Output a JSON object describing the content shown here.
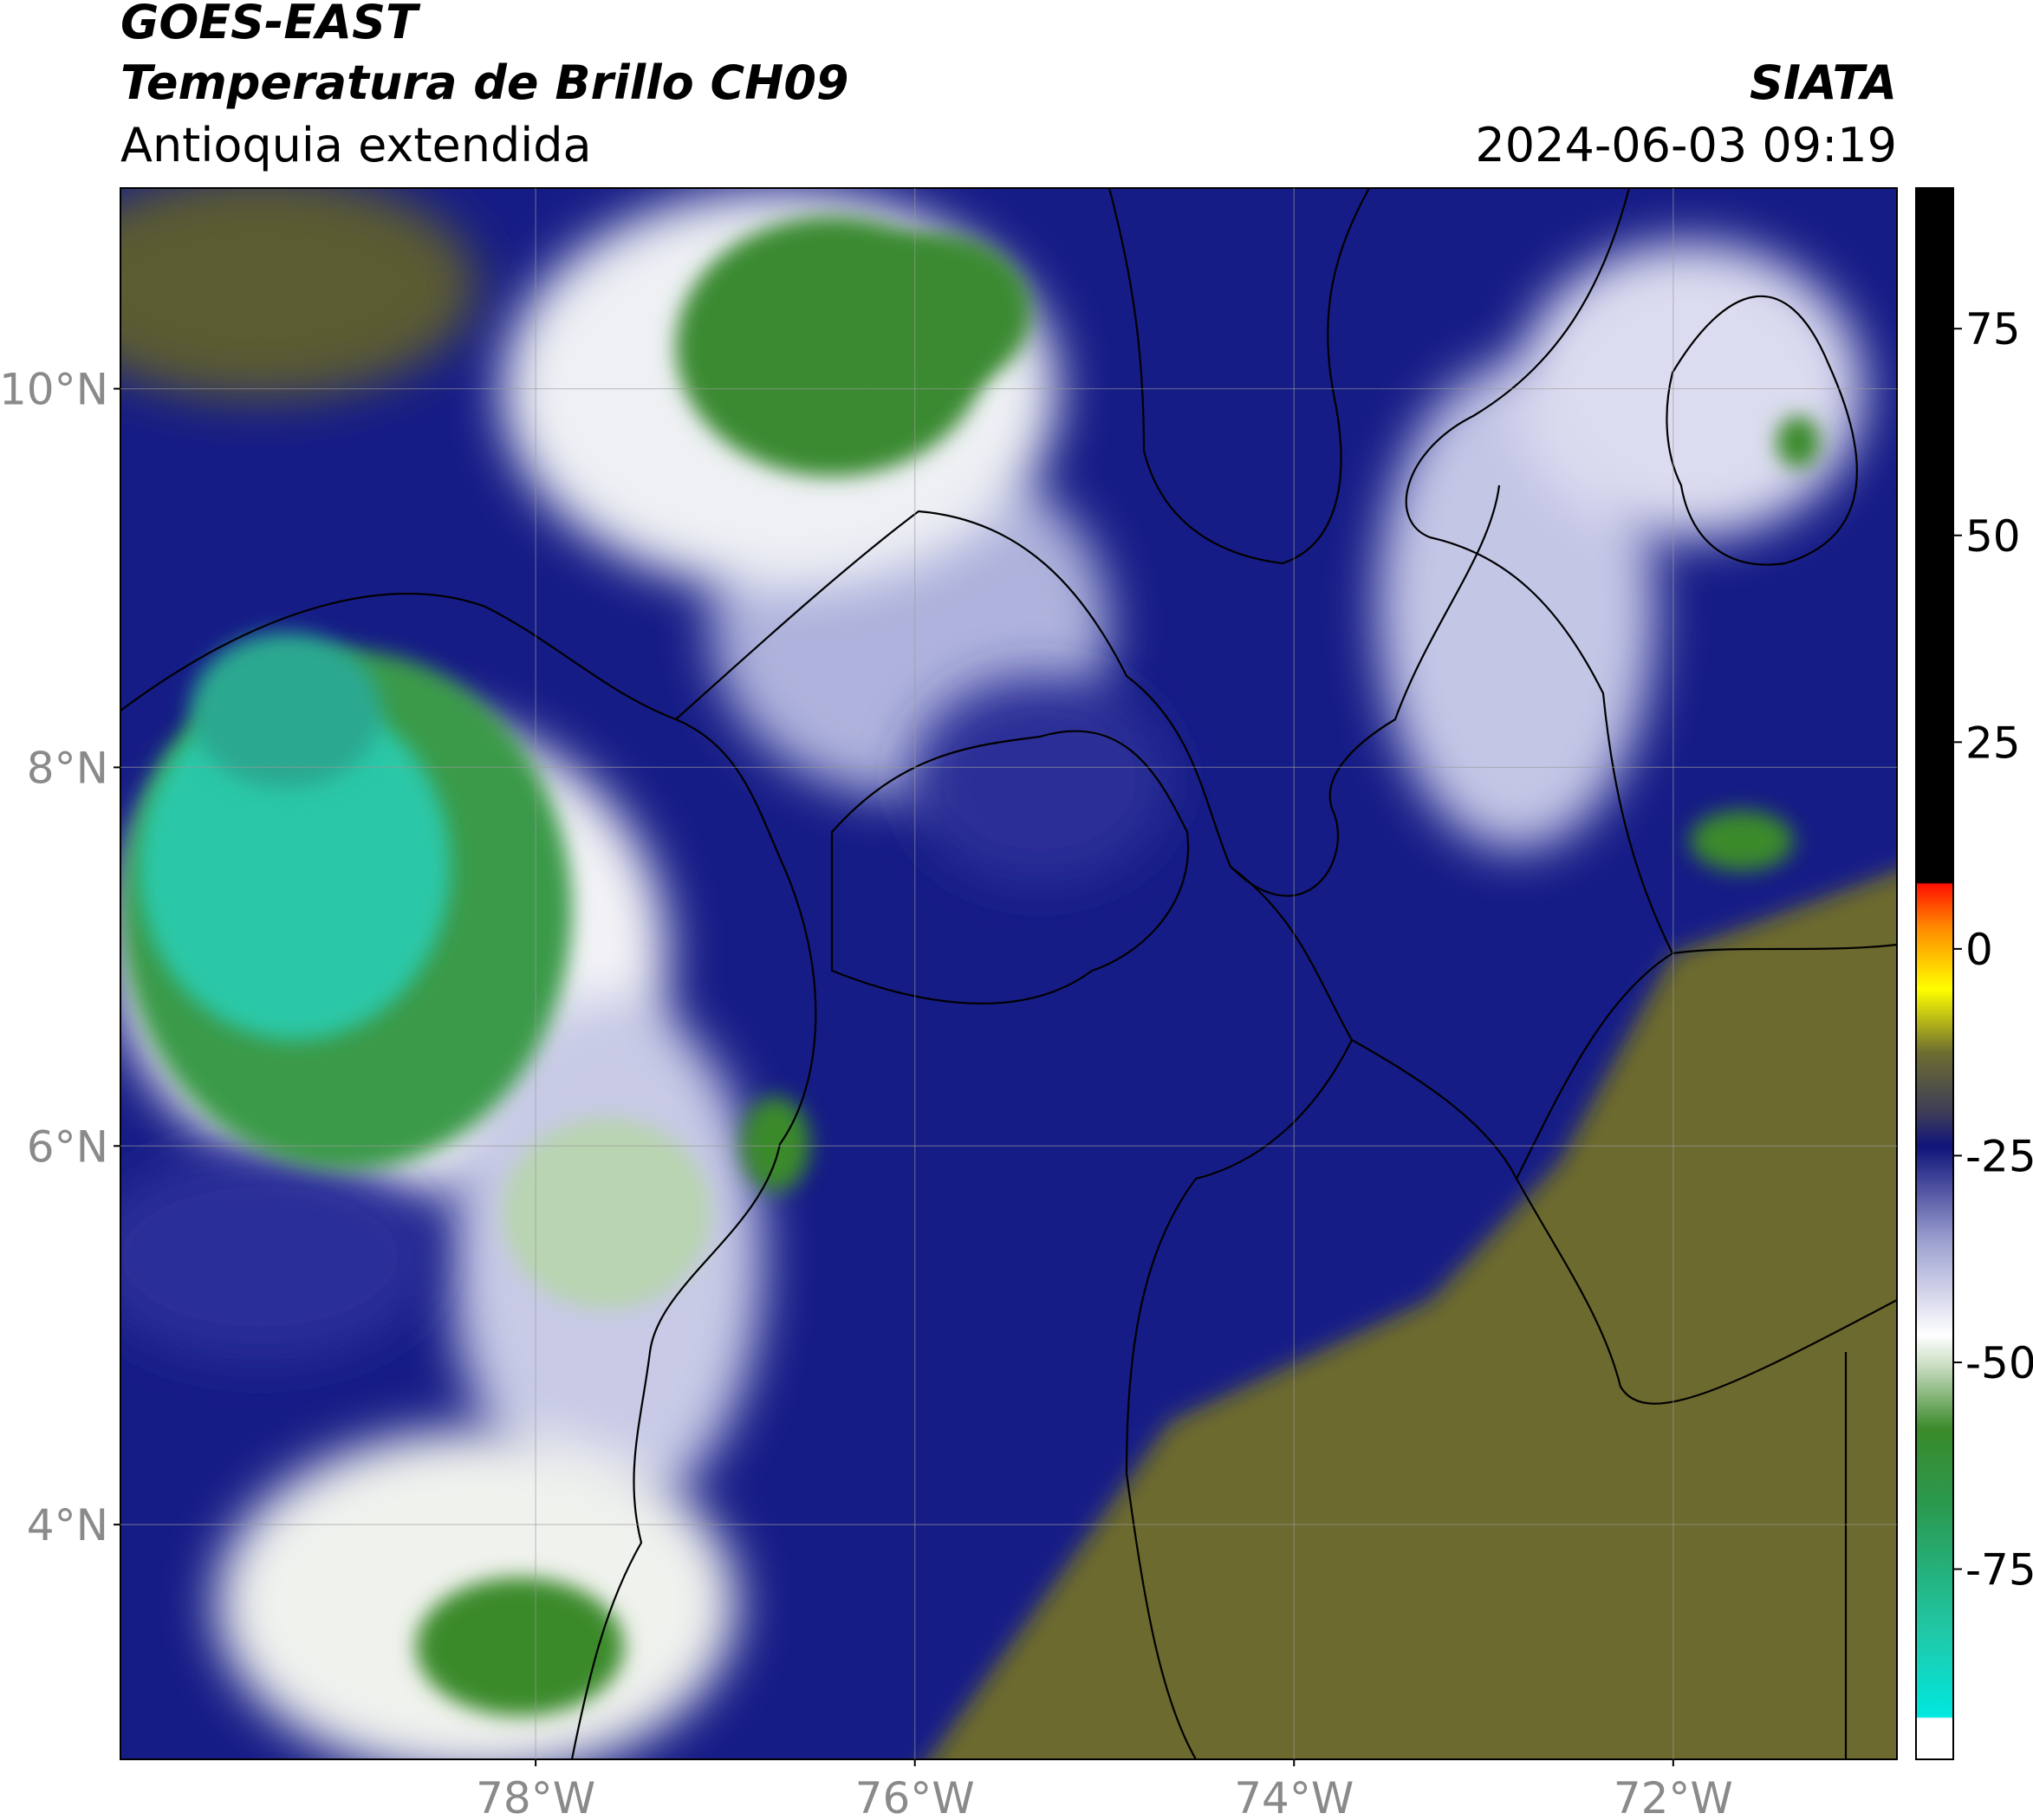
{
  "header": {
    "title": "GOES-EAST",
    "subtitle": "Temperatura de Brillo CH09",
    "region": "Antioquia extendida",
    "source": "SIATA",
    "datetime": "2024-06-03 09:19"
  },
  "map": {
    "xlim": [
      -80.19,
      -70.82
    ],
    "ylim": [
      2.76,
      11.06
    ],
    "xticks": [
      {
        "value": -78,
        "label": "78°W"
      },
      {
        "value": -76,
        "label": "76°W"
      },
      {
        "value": -74,
        "label": "74°W"
      },
      {
        "value": -72,
        "label": "72°W"
      }
    ],
    "yticks": [
      {
        "value": 10,
        "label": "10°N"
      },
      {
        "value": 8,
        "label": "8°N"
      },
      {
        "value": 6,
        "label": "6°N"
      },
      {
        "value": 4,
        "label": "4°N"
      }
    ],
    "grid": true
  },
  "colorbar": {
    "lim": [
      -98,
      92
    ],
    "ticks": [
      75,
      50,
      25,
      0,
      -25,
      -50,
      -75
    ]
  }
}
